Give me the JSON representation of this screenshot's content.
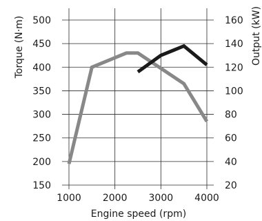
{
  "chart_data": {
    "type": "line",
    "xlabel": "Engine speed (rpm)",
    "ylabel_left": "Torque (N·m)",
    "ylabel_right": "Output (kW)",
    "xlim": [
      1000,
      4000
    ],
    "ylim_left": [
      150,
      500
    ],
    "ylim_right": [
      20,
      160
    ],
    "x_ticks": [
      1000,
      2000,
      3000,
      4000
    ],
    "y_ticks_left": [
      150,
      200,
      250,
      300,
      350,
      400,
      450,
      500
    ],
    "y_ticks_right": [
      20,
      40,
      60,
      80,
      100,
      120,
      140,
      160
    ],
    "grid": "horizontal and vertical",
    "series": [
      {
        "axis": "left",
        "color": "#888888",
        "points": [
          [
            1000,
            195
          ],
          [
            1500,
            400
          ],
          [
            2250,
            430
          ],
          [
            2500,
            430
          ],
          [
            3500,
            365
          ],
          [
            4000,
            285
          ]
        ]
      },
      {
        "axis": "right",
        "color": "#1a1a1a",
        "points": [
          [
            2500,
            116
          ],
          [
            3000,
            130
          ],
          [
            3500,
            138
          ],
          [
            4000,
            122
          ]
        ]
      }
    ]
  }
}
